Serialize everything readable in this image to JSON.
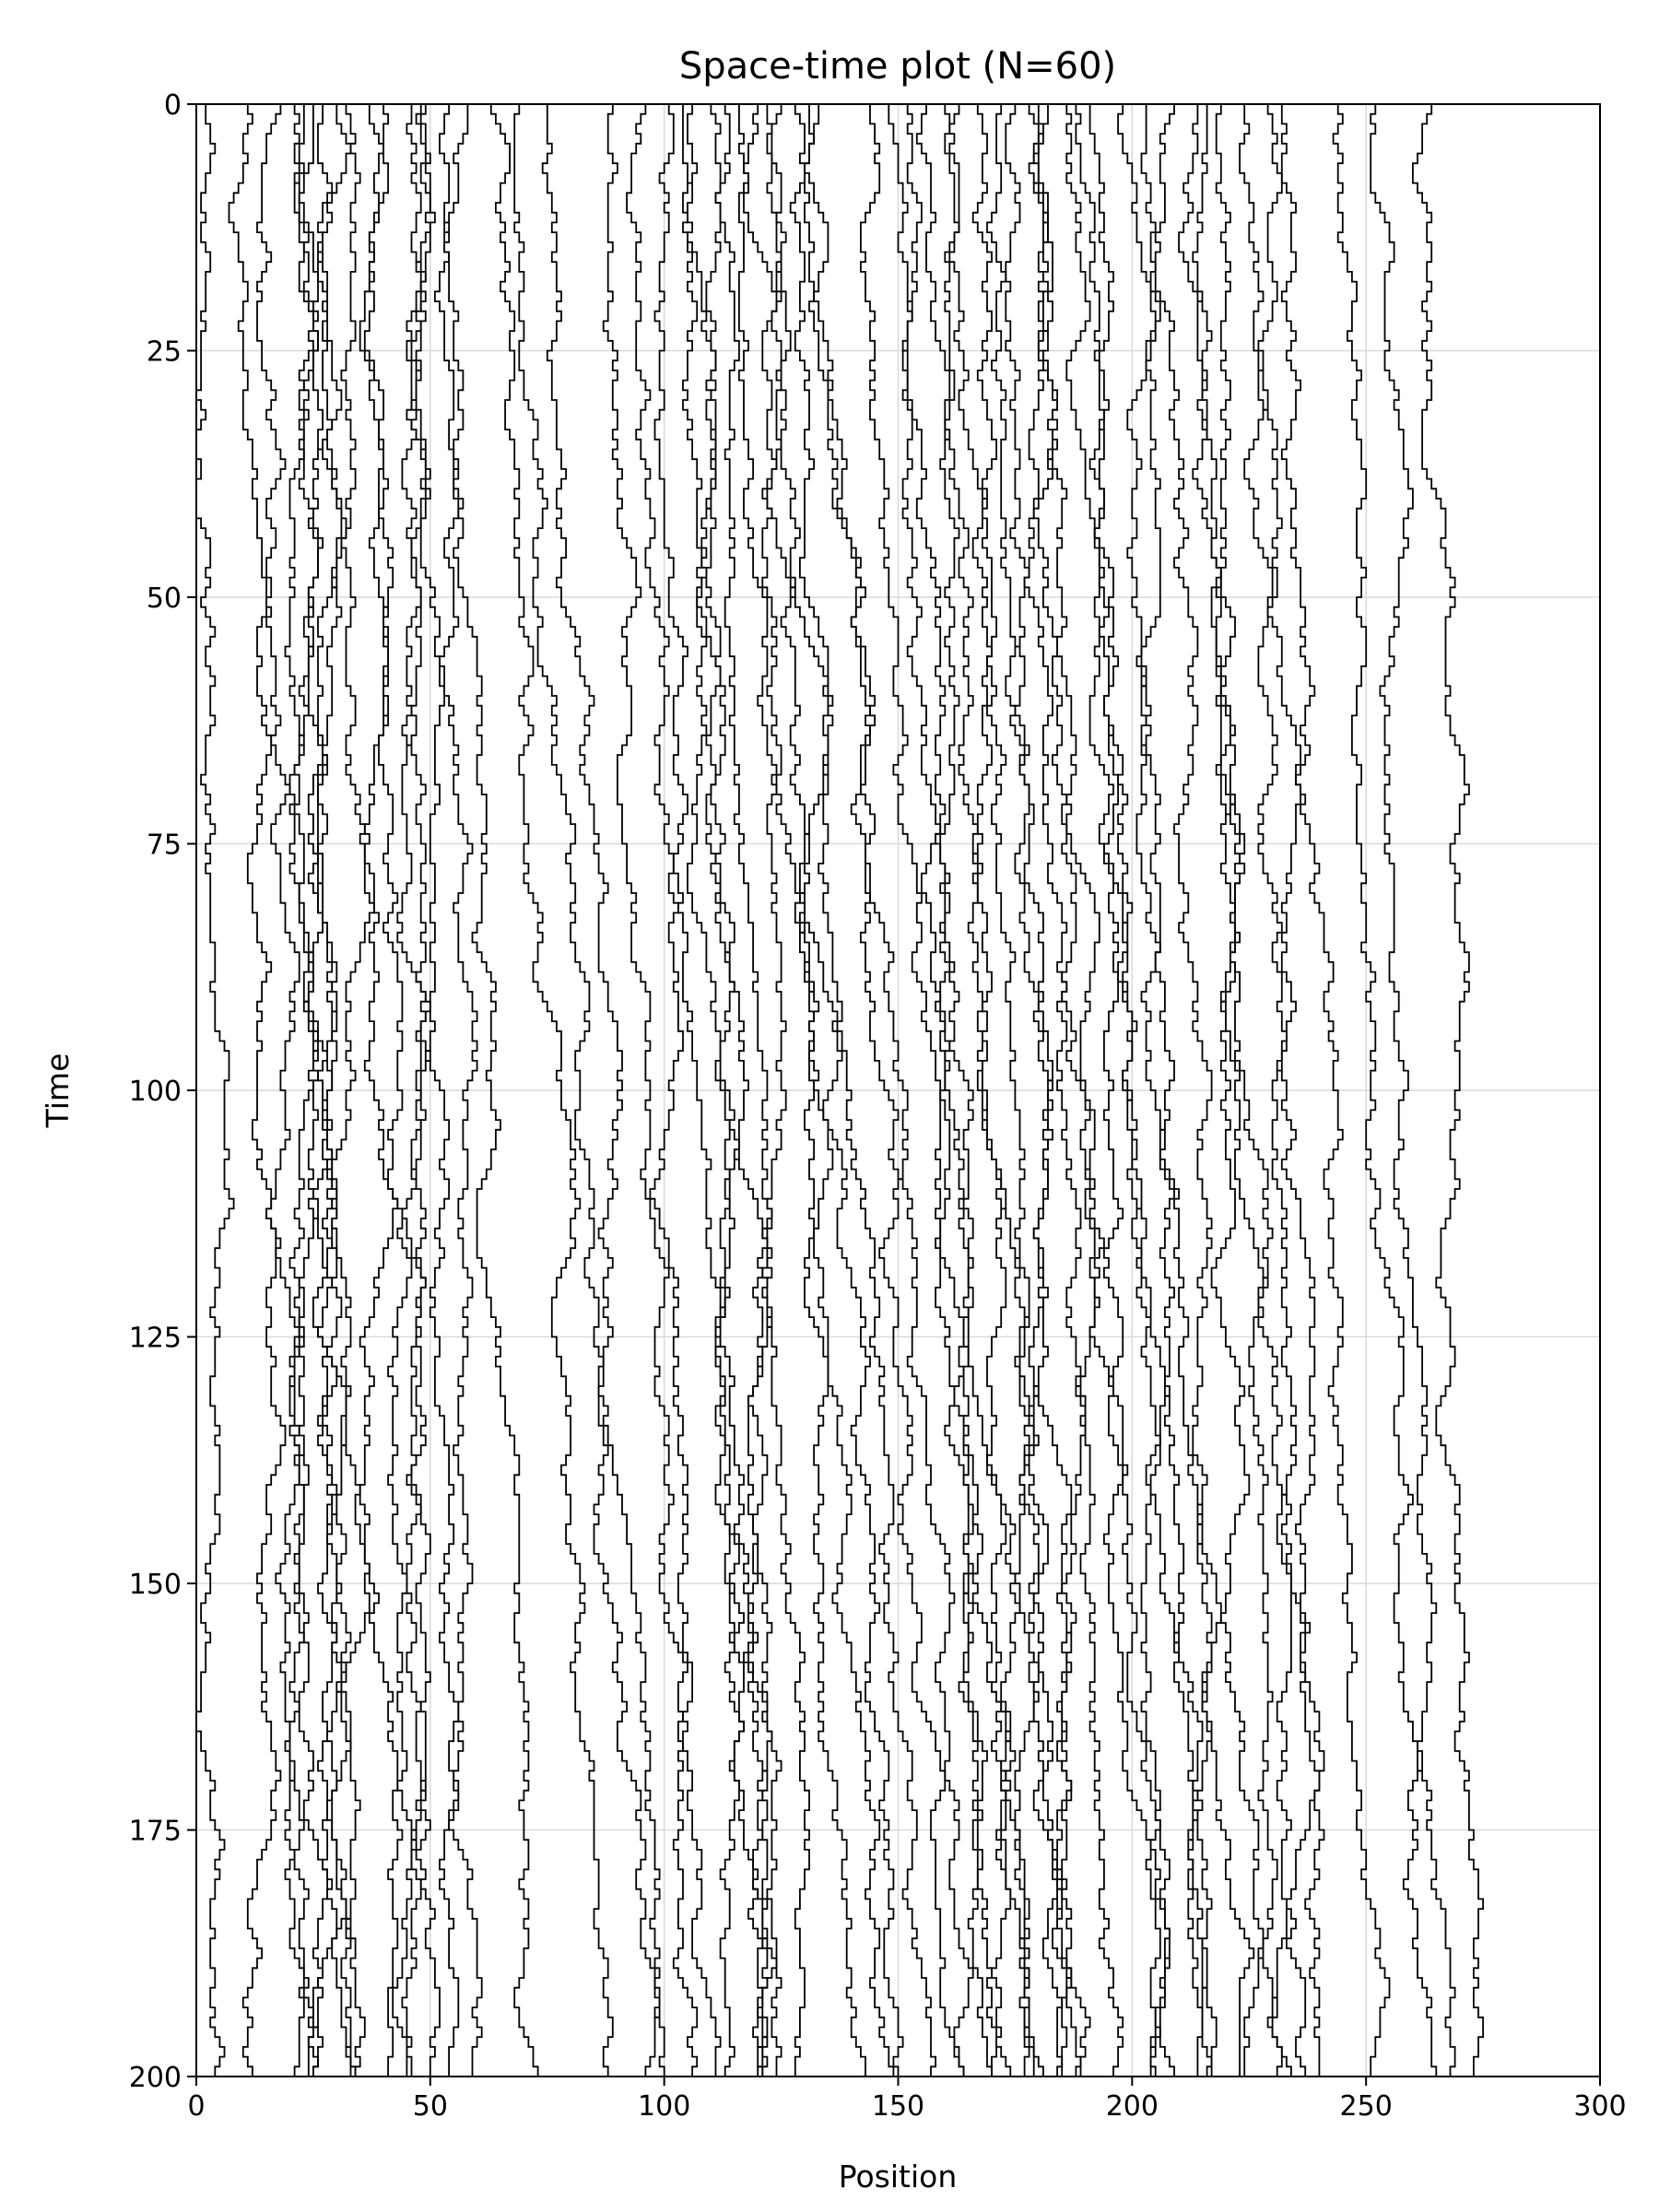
{
  "chart_data": {
    "type": "line",
    "title": "Space-time plot (N=60)",
    "xlabel": "Position",
    "ylabel": "Time",
    "xlim": [
      0,
      300
    ],
    "ylim": [
      0,
      200
    ],
    "y_inverted": true,
    "x_ticks": [
      "0",
      "50",
      "100",
      "150",
      "200",
      "250",
      "300"
    ],
    "y_ticks": [
      "0",
      "25",
      "50",
      "75",
      "100",
      "125",
      "150",
      "175",
      "200"
    ],
    "grid": true,
    "line_color": "#000000",
    "grid_color": "#d9d9d9",
    "n_walkers": 60,
    "series_start_positions": [
      2,
      11,
      18,
      21,
      23,
      25,
      27,
      30,
      32,
      37,
      40,
      46,
      48,
      49,
      54,
      58,
      63,
      69,
      75,
      89,
      96,
      101,
      104,
      106,
      110,
      113,
      116,
      120,
      122,
      125,
      128,
      131,
      133,
      144,
      148,
      152,
      156,
      160,
      163,
      167,
      172,
      175,
      178,
      180,
      182,
      186,
      188,
      191,
      198,
      203,
      209,
      214,
      216,
      219,
      224,
      229,
      232,
      244,
      252,
      264
    ],
    "series_end_positions": [
      4,
      14,
      20,
      23,
      24,
      27,
      30,
      32,
      35,
      41,
      45,
      47,
      49,
      52,
      60,
      71,
      91,
      99,
      101,
      105,
      108,
      117,
      121,
      124,
      127,
      129,
      132,
      141,
      147,
      153,
      157,
      164,
      167,
      172,
      174,
      176,
      178,
      179,
      181,
      183,
      185,
      188,
      192,
      197,
      201,
      207,
      212,
      215,
      217,
      219,
      223,
      227,
      233,
      236,
      238,
      242,
      255,
      263,
      268,
      274
    ]
  }
}
